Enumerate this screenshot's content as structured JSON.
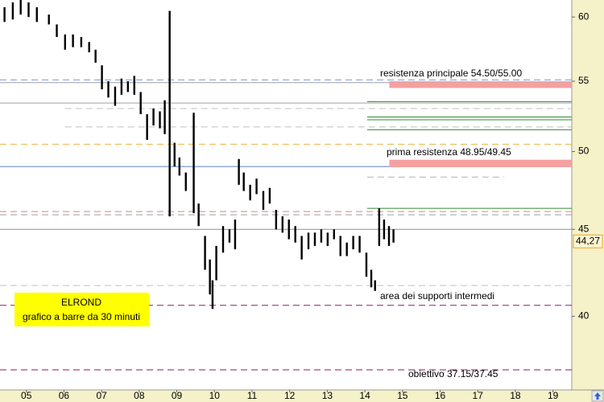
{
  "chart_data": {
    "type": "ohlc",
    "color": "#000000",
    "log_scale": true,
    "xlim": [
      4.3,
      19.5
    ],
    "xticks": [
      {
        "value": 5,
        "label": "05"
      },
      {
        "value": 6,
        "label": "06"
      },
      {
        "value": 7,
        "label": "07"
      },
      {
        "value": 8,
        "label": "08"
      },
      {
        "value": 9,
        "label": "09"
      },
      10,
      11,
      12,
      13,
      14,
      15,
      16,
      17,
      18,
      19
    ],
    "ylim": [
      36.2,
      61.4
    ],
    "yticks": [
      40,
      45,
      50,
      55,
      60
    ],
    "x": [
      4.42,
      4.64,
      4.85,
      5.06,
      5.28,
      5.6,
      5.81,
      6.03,
      6.24,
      6.46,
      6.67,
      6.84,
      7.01,
      7.18,
      7.36,
      7.53,
      7.7,
      7.87,
      8.04,
      8.21,
      8.38,
      8.55,
      8.68,
      8.81,
      8.94,
      9.07,
      9.24,
      9.45,
      9.58,
      9.75,
      9.88,
      9.95,
      10.05,
      10.23,
      10.4,
      10.55,
      10.65,
      10.78,
      10.95,
      11.12,
      11.3,
      11.47,
      11.64,
      11.81,
      11.98,
      12.15,
      12.32,
      12.5,
      12.67,
      12.84,
      13.01,
      13.18,
      13.35,
      13.52,
      13.69,
      13.86,
      14.04,
      14.17,
      14.27,
      14.38,
      14.51,
      14.64,
      14.76
    ],
    "high": [
      60.8,
      61.2,
      61.4,
      61.2,
      60.8,
      60.2,
      59.4,
      58.6,
      58.6,
      58.4,
      58.0,
      57.4,
      56.2,
      55.0,
      54.6,
      55.2,
      55.0,
      55.4,
      54.2,
      52.6,
      53.0,
      52.8,
      53.6,
      60.5,
      50.6,
      49.6,
      48.6,
      52.7,
      46.6,
      44.6,
      43.2,
      42.0,
      44.0,
      45.2,
      45.0,
      45.6,
      49.5,
      48.6,
      47.8,
      48.2,
      47.4,
      47.6,
      46.2,
      45.8,
      45.6,
      45.2,
      44.6,
      44.8,
      44.8,
      45.0,
      44.8,
      45.0,
      44.6,
      44.2,
      44.6,
      44.6,
      43.6,
      42.6,
      42.0,
      46.3,
      45.6,
      45.2,
      45.0
    ],
    "low": [
      59.6,
      59.8,
      60.2,
      60.0,
      59.6,
      59.4,
      58.4,
      57.4,
      57.6,
      57.6,
      57.2,
      56.4,
      54.4,
      53.8,
      53.2,
      54.0,
      54.2,
      54.0,
      52.6,
      50.8,
      51.8,
      51.6,
      51.2,
      45.8,
      49.0,
      48.4,
      47.4,
      46.0,
      45.2,
      42.6,
      41.2,
      40.4,
      42.0,
      43.6,
      44.2,
      43.8,
      47.8,
      47.4,
      46.8,
      47.2,
      46.2,
      46.6,
      45.0,
      44.8,
      44.4,
      44.2,
      43.2,
      43.8,
      44.0,
      44.2,
      44.0,
      44.4,
      43.4,
      43.4,
      43.8,
      43.6,
      42.2,
      41.6,
      41.4,
      44.0,
      44.4,
      44.0,
      44.2
    ],
    "last_price": {
      "value": 44.27,
      "label": "44,27"
    },
    "levels": [
      {
        "value": 55.1,
        "color": "#7a9ad8",
        "dashed": true,
        "x0": 4.3,
        "x1": 19.5
      },
      {
        "value": 54.9,
        "color": "#a0a0a0",
        "dashed": false,
        "x0": 4.3,
        "x1": 19.5
      },
      {
        "value": 53.4,
        "color": "#a0a0a0",
        "dashed": false,
        "x0": 4.3,
        "x1": 19.5
      },
      {
        "value": 53.0,
        "color": "#c0c0c0",
        "dashed": true,
        "x0": 6.03,
        "x1": 19.5
      },
      {
        "value": 51.7,
        "color": "#c0c0c0",
        "dashed": true,
        "x0": 6.03,
        "x1": 19.5
      },
      {
        "value": 53.5,
        "color": "#2e8b2e",
        "dashed": false,
        "x0": 14.06,
        "x1": 19.5
      },
      {
        "value": 52.4,
        "color": "#2e8b2e",
        "dashed": false,
        "x0": 14.06,
        "x1": 19.5
      },
      {
        "value": 52.2,
        "color": "#2e8b2e",
        "dashed": false,
        "x0": 14.06,
        "x1": 19.5
      },
      {
        "value": 51.5,
        "color": "#2e8b2e",
        "dashed": false,
        "x0": 14.06,
        "x1": 19.5
      },
      {
        "value": 50.5,
        "color": "#f0b040",
        "dashed": true,
        "x0": 4.3,
        "x1": 19.5
      },
      {
        "value": 49.0,
        "color": "#5a7fc8",
        "dashed": false,
        "x0": 4.3,
        "x1": 19.5
      },
      {
        "value": 48.3,
        "color": "#b0b0b0",
        "dashed": true,
        "x0": 14.06,
        "x1": 17.7
      },
      {
        "value": 46.3,
        "color": "#2e8b2e",
        "dashed": false,
        "x0": 14.06,
        "x1": 19.5
      },
      {
        "value": 46.1,
        "color": "#e08080",
        "dashed": true,
        "x0": 4.3,
        "x1": 19.5
      },
      {
        "value": 45.9,
        "color": "#a0a0a0",
        "dashed": true,
        "x0": 4.3,
        "x1": 19.5
      },
      {
        "value": 45.0,
        "color": "#909090",
        "dashed": false,
        "x0": 4.3,
        "x1": 19.5
      },
      {
        "value": 41.7,
        "color": "#c0c0c0",
        "dashed": true,
        "x0": 4.3,
        "x1": 19.5
      },
      {
        "value": 40.6,
        "color": "#8a1a6a",
        "dashed": true,
        "x0": 4.3,
        "x1": 19.5
      },
      {
        "value": 37.2,
        "color": "#8a1a6a",
        "dashed": true,
        "x0": 4.3,
        "x1": 19.5
      }
    ],
    "zones": [
      {
        "low": 54.5,
        "high": 55.0,
        "x0": 14.65,
        "color": "#f4a0a0"
      },
      {
        "low": 48.95,
        "high": 49.45,
        "x0": 14.65,
        "color": "#f4a0a0"
      }
    ],
    "annotations": {
      "main_resistance": "resistenza principale 54.50/55.00",
      "first_resistance": "prima resistenza 48.95/49.45",
      "supports": "area dei supporti intermedi",
      "target": "obiettivo 37.15/37.45",
      "ticker": "ELROND",
      "chart_kind": "grafico a barre da 30 minuti"
    }
  }
}
